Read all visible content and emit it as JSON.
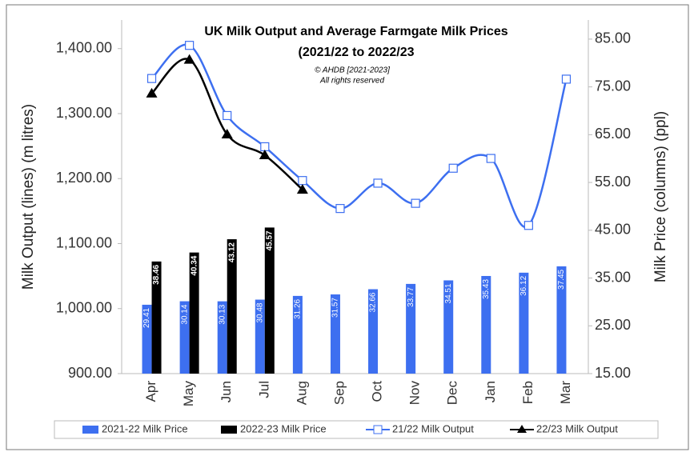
{
  "chart_data": {
    "type": "bar-line",
    "title": [
      "UK Milk Output and Average Farmgate Milk Prices",
      "(2021/22 to 2022/23"
    ],
    "annotations": [
      "© AHDB [2021-2023]",
      "All rights reserved"
    ],
    "ylabel": "Milk Output (lines) (m litres)",
    "y2label": "Milk Price (columns) (ppl)",
    "categories": [
      "Apr",
      "May",
      "Jun",
      "Jul",
      "Aug",
      "Sep",
      "Oct",
      "Nov",
      "Dec",
      "Jan",
      "Feb",
      "Mar"
    ],
    "ylim": [
      900,
      1444
    ],
    "yticks": [
      {
        "value": 900,
        "label": "900.00"
      },
      {
        "value": 1000,
        "label": "1,000.00"
      },
      {
        "value": 1100,
        "label": "1,100.00"
      },
      {
        "value": 1200,
        "label": "1,200.00"
      },
      {
        "value": 1300,
        "label": "1,300.00"
      },
      {
        "value": 1400,
        "label": "1,400.00"
      }
    ],
    "y2lim": [
      15,
      89
    ],
    "y2ticks": [
      {
        "value": 15,
        "label": "15.00"
      },
      {
        "value": 25,
        "label": "25.00"
      },
      {
        "value": 35,
        "label": "35.00"
      },
      {
        "value": 45,
        "label": "45.00"
      },
      {
        "value": 55,
        "label": "55.00"
      },
      {
        "value": 65,
        "label": "65.00"
      },
      {
        "value": 75,
        "label": "75.00"
      },
      {
        "value": 85,
        "label": "85.00"
      }
    ],
    "grid": false,
    "series": [
      {
        "name": "2021-22 Milk Price",
        "type": "bar",
        "axis": "y2",
        "color": "#3d6ff0",
        "values": [
          29.41,
          30.14,
          30.13,
          30.48,
          31.26,
          31.57,
          32.66,
          33.77,
          34.51,
          35.43,
          36.12,
          37.45
        ]
      },
      {
        "name": "2022-23 Milk Price",
        "type": "bar",
        "axis": "y2",
        "color": "#000000",
        "values": [
          38.46,
          40.34,
          43.12,
          45.57,
          null,
          null,
          null,
          null,
          null,
          null,
          null,
          null
        ]
      },
      {
        "name": "21/22 Milk Output",
        "type": "line",
        "marker": "square",
        "color": "#3d6ff0",
        "values": [
          1354,
          1405,
          1297,
          1249,
          1197,
          1154,
          1193,
          1162,
          1216,
          1231,
          1128,
          1353
        ]
      },
      {
        "name": "22/23 Milk Output",
        "type": "line",
        "marker": "triangle",
        "color": "#000000",
        "values": [
          1331,
          1383,
          1268,
          1236,
          1183,
          null,
          null,
          null,
          null,
          null,
          null,
          null
        ]
      }
    ]
  }
}
